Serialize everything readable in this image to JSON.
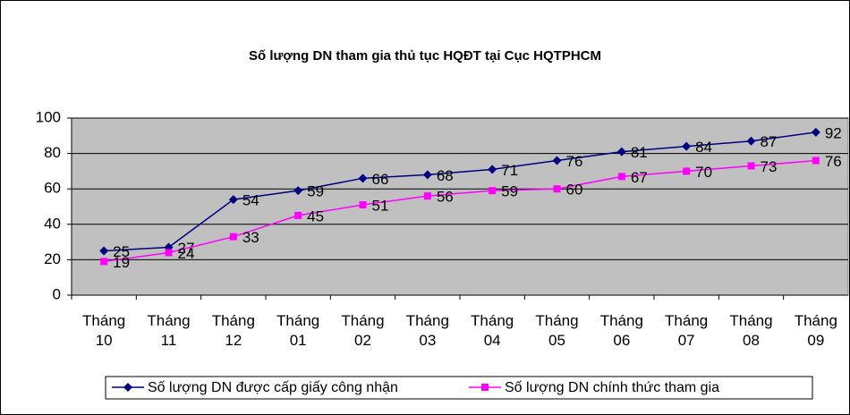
{
  "chart_data": {
    "type": "line",
    "title": "Số lượng DN tham gia thủ tục HQĐT tại Cục HQTPHCM",
    "categories": [
      "Tháng 10",
      "Tháng 11",
      "Tháng 12",
      "Tháng 01",
      "Tháng 02",
      "Tháng 03",
      "Tháng 04",
      "Tháng 05",
      "Tháng 06",
      "Tháng 07",
      "Tháng 08",
      "Tháng 09"
    ],
    "series": [
      {
        "name": "Số lượng DN được cấp giấy công nhận",
        "color": "#000080",
        "marker": "diamond",
        "values": [
          25,
          27,
          54,
          59,
          66,
          68,
          71,
          76,
          81,
          84,
          87,
          92
        ]
      },
      {
        "name": "Số lượng DN chính thức tham gia",
        "color": "#ff00ff",
        "marker": "square",
        "values": [
          19,
          24,
          33,
          45,
          51,
          56,
          59,
          60,
          67,
          70,
          73,
          76
        ]
      }
    ],
    "ylim": [
      0,
      100
    ],
    "yticks": [
      0,
      20,
      40,
      60,
      80,
      100
    ],
    "grid": true,
    "legend": "bottom"
  }
}
